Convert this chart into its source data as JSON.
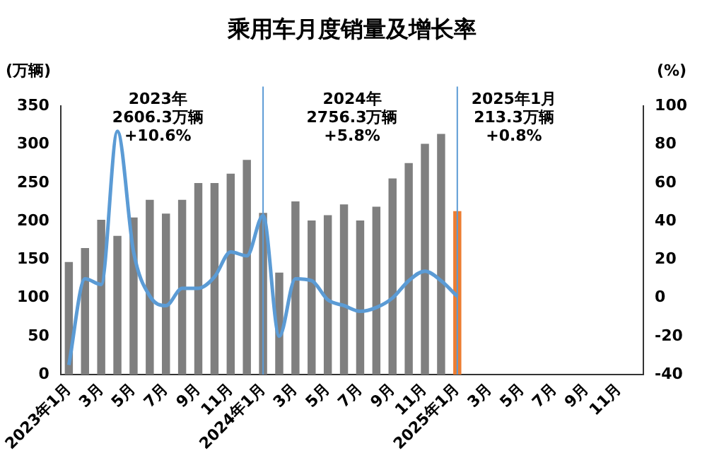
{
  "chart_data": {
    "type": "bar",
    "title": "乘用车月度销量及增长率",
    "ylabel": "(万辆)",
    "y2label": "(%)",
    "categories": [
      "2023年1月",
      null,
      "3月",
      null,
      "5月",
      null,
      "7月",
      null,
      "9月",
      null,
      "11月",
      null,
      "2024年1月",
      null,
      "3月",
      null,
      "5月",
      null,
      "7月",
      null,
      "9月",
      null,
      "11月",
      null,
      "2025年1月",
      null,
      "3月",
      null,
      "5月",
      null,
      "7月",
      null,
      "9月",
      null,
      "11月",
      null
    ],
    "series": [
      {
        "colors": [
          "#7f7f7f",
          "#7f7f7f",
          "#7f7f7f",
          "#7f7f7f",
          "#7f7f7f",
          "#7f7f7f",
          "#7f7f7f",
          "#7f7f7f",
          "#7f7f7f",
          "#7f7f7f",
          "#7f7f7f",
          "#7f7f7f",
          "#7f7f7f",
          "#7f7f7f",
          "#7f7f7f",
          "#7f7f7f",
          "#7f7f7f",
          "#7f7f7f",
          "#7f7f7f",
          "#7f7f7f",
          "#7f7f7f",
          "#7f7f7f",
          "#7f7f7f",
          "#7f7f7f",
          "#ed7d31",
          "#ed7d31",
          "#ed7d31",
          "#ed7d31",
          "#ed7d31",
          "#ed7d31",
          "#ed7d31",
          "#ed7d31",
          "#ed7d31",
          "#ed7d31",
          "#ed7d31",
          "#ed7d31"
        ],
        "values": [
          147,
          165,
          202,
          181,
          205,
          228,
          210,
          228,
          250,
          250,
          262,
          280,
          211,
          133,
          226,
          201,
          208,
          222,
          201,
          219,
          256,
          276,
          301,
          314,
          213.3,
          null,
          null,
          null,
          null,
          null,
          null,
          null,
          null,
          null,
          null,
          null
        ]
      },
      {
        "type": "line",
        "axis": "y2",
        "color": "#5b9bd5",
        "values": [
          -35,
          10,
          7,
          87,
          24,
          1,
          -4,
          5,
          5,
          11,
          24,
          22,
          43,
          -20,
          10,
          9,
          -1,
          -4,
          -7,
          -5,
          0,
          9,
          14,
          9,
          0.8,
          null,
          null,
          null,
          null,
          null,
          null,
          null,
          null,
          null,
          null,
          null
        ]
      }
    ],
    "ylim": [
      0,
      350
    ],
    "yticks": [
      0,
      50,
      100,
      150,
      200,
      250,
      300,
      350
    ],
    "y2lim": [
      -40,
      100
    ],
    "y2ticks": [
      -40,
      -20,
      0,
      20,
      40,
      60,
      80,
      100
    ],
    "ref_lines": [
      {
        "axis": "x",
        "value": "2024年1月",
        "color": "#5b9bd5"
      },
      {
        "axis": "x",
        "value": "2025年1月",
        "color": "#5b9bd5"
      }
    ],
    "annotations": [
      "2023年\n2606.3万辆\n+10.6%",
      "2024年\n2756.3万辆\n+5.8%",
      "2025年1月\n213.3万辆\n+0.8%"
    ],
    "grid": false,
    "legend": false,
    "line_style": "solid",
    "marker": "none"
  }
}
